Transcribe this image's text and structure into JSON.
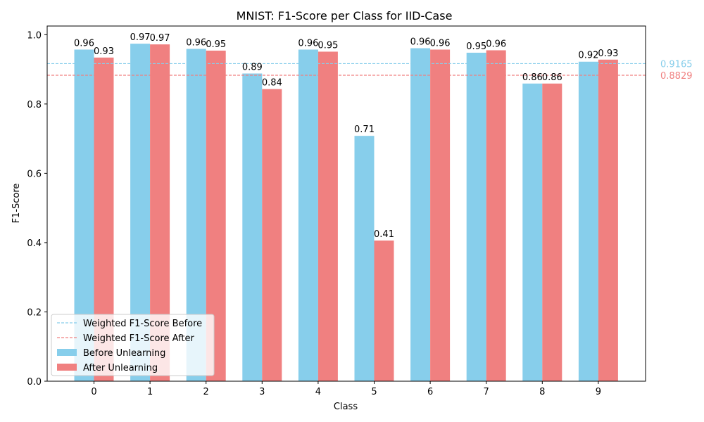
{
  "chart_data": {
    "type": "bar",
    "title": "MNIST: F1-Score per Class for IID-Case",
    "xlabel": "Class",
    "ylabel": "F1-Score",
    "categories": [
      "0",
      "1",
      "2",
      "3",
      "4",
      "5",
      "6",
      "7",
      "8",
      "9"
    ],
    "series": [
      {
        "name": "Before Unlearning",
        "color": "#87ceeb",
        "values": [
          0.957,
          0.974,
          0.959,
          0.888,
          0.957,
          0.708,
          0.961,
          0.948,
          0.859,
          0.922
        ],
        "labels": [
          "0.96",
          "0.97",
          "0.96",
          "0.89",
          "0.96",
          "0.71",
          "0.96",
          "0.95",
          "0.86",
          "0.92"
        ]
      },
      {
        "name": "After Unlearning",
        "color": "#f08080",
        "values": [
          0.934,
          0.972,
          0.954,
          0.843,
          0.951,
          0.406,
          0.957,
          0.955,
          0.859,
          0.928
        ],
        "labels": [
          "0.93",
          "0.97",
          "0.95",
          "0.84",
          "0.95",
          "0.41",
          "0.96",
          "0.96",
          "0.86",
          "0.93"
        ]
      }
    ],
    "reference_lines": [
      {
        "name": "Weighted F1-Score Before",
        "value": 0.9165,
        "label": "0.9165",
        "color": "#87ceeb",
        "style": "dashed"
      },
      {
        "name": "Weighted F1-Score After",
        "value": 0.8829,
        "label": "0.8829",
        "color": "#f08080",
        "style": "dashed"
      }
    ],
    "ylim": [
      0,
      1.025
    ],
    "yticks": [
      "0.0",
      "0.2",
      "0.4",
      "0.6",
      "0.8",
      "1.0"
    ],
    "ytick_values": [
      0,
      0.2,
      0.4,
      0.6,
      0.8,
      1.0
    ],
    "grid": false,
    "legend": "lower-left"
  }
}
